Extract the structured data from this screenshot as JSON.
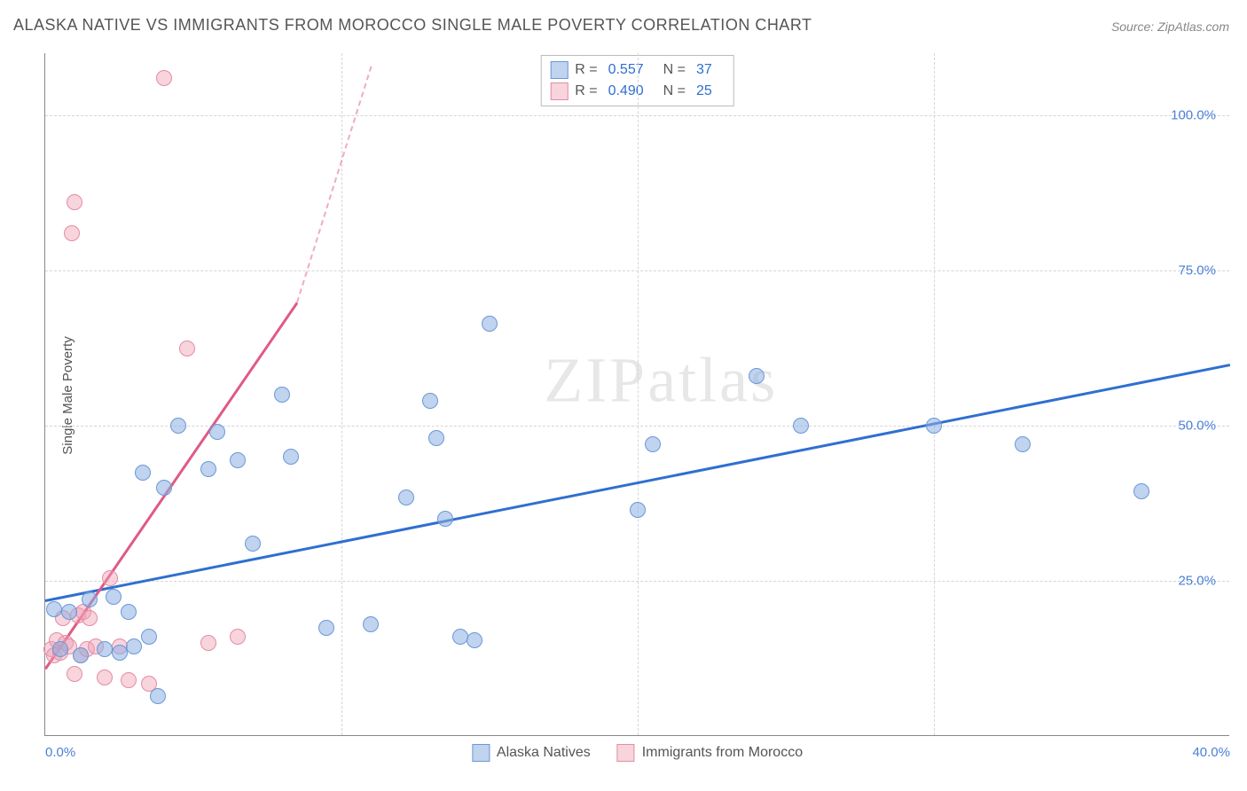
{
  "title": "ALASKA NATIVE VS IMMIGRANTS FROM MOROCCO SINGLE MALE POVERTY CORRELATION CHART",
  "source_label": "Source: ZipAtlas.com",
  "y_axis_label": "Single Male Poverty",
  "watermark": "ZIPatlas",
  "chart": {
    "type": "scatter",
    "xlim": [
      0,
      40
    ],
    "ylim": [
      0,
      110
    ],
    "x_ticks": [
      0,
      10,
      20,
      30,
      40
    ],
    "x_tick_labels": [
      "0.0%",
      "",
      "",
      "",
      "40.0%"
    ],
    "y_ticks": [
      25,
      50,
      75,
      100
    ],
    "y_tick_labels": [
      "25.0%",
      "50.0%",
      "75.0%",
      "100.0%"
    ],
    "background_color": "#ffffff",
    "grid_color": "#d5d5d5",
    "axis_color": "#888888",
    "marker_radius": 9,
    "series": [
      {
        "name": "Alaska Natives",
        "color_fill": "rgba(140,175,225,0.55)",
        "color_stroke": "#6a98d6",
        "cls": "blue",
        "r_value": "0.557",
        "n_value": "37",
        "trend": {
          "x1": 0,
          "y1": 22,
          "x2": 40,
          "y2": 60,
          "color": "#2f6fd0"
        },
        "points": [
          [
            0.3,
            20.5
          ],
          [
            0.5,
            14
          ],
          [
            0.8,
            20
          ],
          [
            1.2,
            13
          ],
          [
            1.5,
            22
          ],
          [
            2.0,
            14
          ],
          [
            2.3,
            22.5
          ],
          [
            2.5,
            13.5
          ],
          [
            2.8,
            20
          ],
          [
            3.0,
            14.5
          ],
          [
            3.3,
            42.5
          ],
          [
            3.5,
            16
          ],
          [
            3.8,
            6.5
          ],
          [
            4.0,
            40
          ],
          [
            4.5,
            50
          ],
          [
            5.5,
            43
          ],
          [
            5.8,
            49
          ],
          [
            7.0,
            31
          ],
          [
            8.0,
            55
          ],
          [
            8.3,
            45
          ],
          [
            9.5,
            17.5
          ],
          [
            11.0,
            18
          ],
          [
            12.2,
            38.5
          ],
          [
            13.0,
            54
          ],
          [
            13.2,
            48
          ],
          [
            13.5,
            35
          ],
          [
            14.0,
            16
          ],
          [
            15.0,
            66.5
          ],
          [
            20.0,
            36.5
          ],
          [
            20.5,
            47
          ],
          [
            24.0,
            58
          ],
          [
            25.5,
            50
          ],
          [
            30.0,
            50
          ],
          [
            33.0,
            47
          ],
          [
            37.0,
            39.5
          ],
          [
            14.5,
            15.5
          ],
          [
            6.5,
            44.5
          ]
        ]
      },
      {
        "name": "Immigrants from Morocco",
        "color_fill": "rgba(240,160,180,0.45)",
        "color_stroke": "#e38ca5",
        "cls": "pink",
        "r_value": "0.490",
        "n_value": "25",
        "trend": {
          "x1": 0,
          "y1": 11,
          "x2": 8.5,
          "y2": 70,
          "color": "#e05a84",
          "dashed_to": {
            "x": 11.0,
            "y": 108
          }
        },
        "points": [
          [
            0.2,
            14
          ],
          [
            0.3,
            13
          ],
          [
            0.4,
            15.5
          ],
          [
            0.5,
            13.5
          ],
          [
            0.6,
            19
          ],
          [
            0.7,
            15
          ],
          [
            0.8,
            14.5
          ],
          [
            0.9,
            81
          ],
          [
            1.0,
            86
          ],
          [
            1.0,
            10
          ],
          [
            1.1,
            19.5
          ],
          [
            1.2,
            13
          ],
          [
            1.3,
            20
          ],
          [
            1.4,
            14
          ],
          [
            1.5,
            19
          ],
          [
            1.7,
            14.5
          ],
          [
            2.0,
            9.5
          ],
          [
            2.2,
            25.5
          ],
          [
            2.5,
            14.5
          ],
          [
            2.8,
            9
          ],
          [
            3.5,
            8.5
          ],
          [
            4.0,
            106
          ],
          [
            4.8,
            62.5
          ],
          [
            5.5,
            15
          ],
          [
            6.5,
            16
          ]
        ]
      }
    ]
  },
  "legend_top": {
    "r_label": "R  =",
    "n_label": "N  ="
  },
  "legend_bottom": {
    "series1": "Alaska Natives",
    "series2": "Immigrants from Morocco"
  }
}
